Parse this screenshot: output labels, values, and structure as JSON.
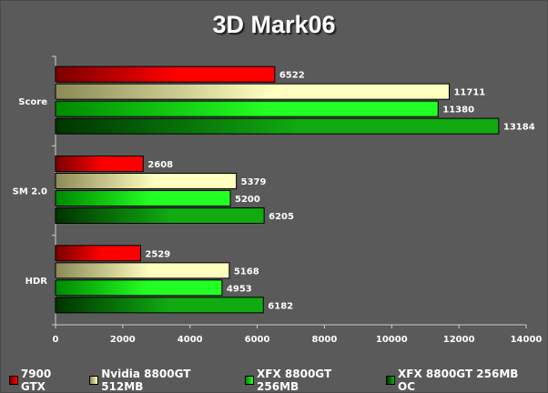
{
  "chart_data": {
    "type": "bar",
    "orientation": "horizontal",
    "title": "3D Mark06",
    "categories": [
      "Score",
      "SM 2.0",
      "HDR"
    ],
    "series": [
      {
        "name": "7900 GTX",
        "color_light": "#ff0000",
        "color_dark": "#7a0000",
        "values": [
          6522,
          2608,
          2529
        ]
      },
      {
        "name": "Nvidia 8800GT 512MB",
        "color_light": "#ffffc0",
        "color_dark": "#8a8a55",
        "values": [
          11711,
          5379,
          5168
        ]
      },
      {
        "name": "XFX 8800GT 256MB",
        "color_light": "#22ff22",
        "color_dark": "#008800",
        "values": [
          11380,
          5200,
          4953
        ]
      },
      {
        "name": "XFX 8800GT 256MB OC",
        "color_light": "#11aa11",
        "color_dark": "#003300",
        "values": [
          13184,
          6205,
          6182
        ]
      }
    ],
    "xlim": [
      0,
      14000
    ],
    "xticks": [
      "0",
      "2000",
      "4000",
      "6000",
      "8000",
      "10000",
      "12000",
      "14000"
    ],
    "grid": false,
    "legend_position": "bottom"
  }
}
